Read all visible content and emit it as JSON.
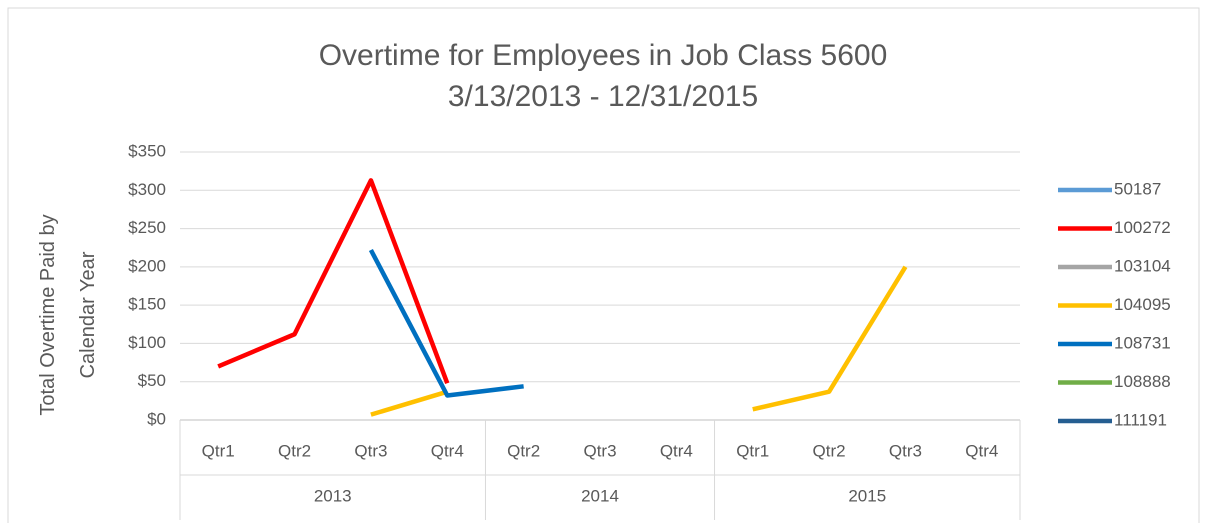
{
  "chart_data": {
    "type": "line",
    "title": "Overtime for Employees in Job Class 5600",
    "subtitle": "3/13/2013 - 12/31/2015",
    "y_label": "Total Overtime Paid by Calendar Year",
    "groups": [
      {
        "label": "2013",
        "categories": [
          "Qtr1",
          "Qtr2",
          "Qtr3",
          "Qtr4"
        ]
      },
      {
        "label": "2014",
        "categories": [
          "Qtr2",
          "Qtr3",
          "Qtr4"
        ]
      },
      {
        "label": "2015",
        "categories": [
          "Qtr1",
          "Qtr2",
          "Qtr3",
          "Qtr4"
        ]
      }
    ],
    "ylim": [
      0,
      350
    ],
    "yticks": [
      {
        "value": 0,
        "label": "$0"
      },
      {
        "value": 50,
        "label": "$50"
      },
      {
        "value": 100,
        "label": "$100"
      },
      {
        "value": 150,
        "label": "$150"
      },
      {
        "value": 200,
        "label": "$200"
      },
      {
        "value": 250,
        "label": "$250"
      },
      {
        "value": 300,
        "label": "$300"
      },
      {
        "value": 350,
        "label": "$350"
      }
    ],
    "grid": true,
    "legend": "right",
    "series": [
      {
        "name": "50187",
        "color": "#5b9bd5",
        "values": [
          null,
          null,
          null,
          null,
          null,
          null,
          null,
          null,
          null,
          null,
          null
        ]
      },
      {
        "name": "100272",
        "color": "#ff0000",
        "values": [
          70,
          112,
          313,
          48,
          null,
          null,
          null,
          null,
          null,
          null,
          null
        ]
      },
      {
        "name": "103104",
        "color": "#a5a5a5",
        "values": [
          null,
          null,
          null,
          null,
          null,
          null,
          null,
          null,
          null,
          null,
          null
        ]
      },
      {
        "name": "104095",
        "color": "#ffc000",
        "values": [
          null,
          null,
          7,
          37,
          null,
          null,
          null,
          14,
          37,
          200,
          null
        ]
      },
      {
        "name": "108731",
        "color": "#0070c0",
        "values": [
          null,
          null,
          222,
          32,
          44,
          null,
          null,
          null,
          null,
          null,
          null
        ]
      },
      {
        "name": "108888",
        "color": "#70ad47",
        "values": [
          null,
          null,
          null,
          null,
          null,
          null,
          null,
          null,
          null,
          null,
          null
        ]
      },
      {
        "name": "111191",
        "color": "#255e91",
        "values": [
          null,
          null,
          null,
          null,
          null,
          null,
          null,
          null,
          null,
          null,
          null
        ]
      }
    ]
  }
}
